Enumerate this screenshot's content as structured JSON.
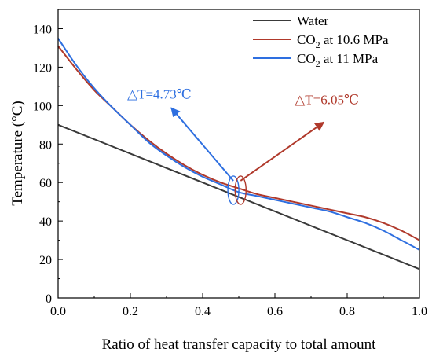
{
  "chart_data": {
    "type": "line",
    "xlabel": "Ratio of heat transfer capacity to total amount",
    "ylabel": "Temperature (°C)",
    "xlim": [
      0,
      1.0
    ],
    "ylim": [
      0,
      150
    ],
    "x_ticks": [
      "0.0",
      "0.2",
      "0.4",
      "0.6",
      "0.8",
      "1.0"
    ],
    "y_ticks": [
      "0",
      "20",
      "40",
      "60",
      "80",
      "100",
      "120",
      "140"
    ],
    "legend_position": "top-right",
    "series": [
      {
        "name": "Water",
        "color": "#3a3a3a",
        "x": [
          0,
          1.0
        ],
        "y": [
          90,
          15
        ]
      },
      {
        "name": "CO2 at 10.6 MPa",
        "name_parts": [
          "CO",
          "2",
          " at 10.6 MPa"
        ],
        "color": "#b0392b",
        "x": [
          0,
          0.05,
          0.1,
          0.15,
          0.2,
          0.25,
          0.3,
          0.35,
          0.4,
          0.45,
          0.5,
          0.55,
          0.6,
          0.65,
          0.7,
          0.75,
          0.8,
          0.85,
          0.9,
          0.95,
          1.0
        ],
        "y": [
          131,
          119,
          108,
          99,
          90,
          82,
          75,
          69,
          64,
          60,
          57,
          54,
          52,
          50,
          48,
          46,
          44,
          42,
          39,
          35,
          30
        ]
      },
      {
        "name": "CO2 at 11 MPa",
        "name_parts": [
          "CO",
          "2",
          " at 11 MPa"
        ],
        "color": "#2e6fe0",
        "x": [
          0,
          0.05,
          0.1,
          0.15,
          0.2,
          0.25,
          0.3,
          0.35,
          0.4,
          0.45,
          0.5,
          0.55,
          0.6,
          0.65,
          0.7,
          0.75,
          0.8,
          0.85,
          0.9,
          0.95,
          1.0
        ],
        "y": [
          135,
          121,
          109,
          99,
          90,
          81,
          74,
          68,
          63,
          59,
          55,
          53,
          51,
          49,
          47,
          45,
          42,
          39,
          35,
          30,
          25
        ]
      }
    ],
    "annotations": [
      {
        "text": "△T=4.73℃",
        "color": "#2e6fe0",
        "ellipse_at": [
          0.485,
          56
        ],
        "label_at": [
          0.2,
          100
        ]
      },
      {
        "text": "△T=6.05℃",
        "color": "#b0392b",
        "ellipse_at": [
          0.505,
          56
        ],
        "label_at": [
          0.72,
          95
        ]
      }
    ]
  }
}
